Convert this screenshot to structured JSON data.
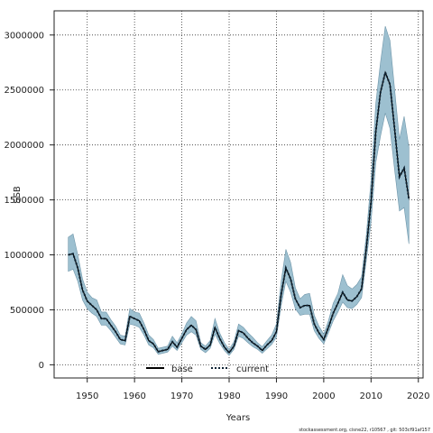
{
  "chart_data": {
    "type": "line",
    "title": "",
    "xlabel": "Years",
    "ylabel": "SSB",
    "xlim": [
      1943,
      2021
    ],
    "ylim": [
      -120000,
      3220000
    ],
    "x_ticks": [
      1950,
      1960,
      1970,
      1980,
      1990,
      2000,
      2010,
      2020
    ],
    "y_ticks": [
      0,
      500000,
      1000000,
      1500000,
      2000000,
      2500000,
      3000000
    ],
    "y_tick_labels": [
      "0",
      "500000",
      "1000000",
      "1500000",
      "2000000",
      "2500000",
      "3000000"
    ],
    "grid": true,
    "legend_position": "bottom",
    "colors": {
      "band": "#9dc0d0",
      "band_edge": "#6f96aa",
      "current": "#0d2233",
      "base": "#000000"
    },
    "x": [
      1946,
      1947,
      1948,
      1949,
      1950,
      1951,
      1952,
      1953,
      1954,
      1955,
      1956,
      1957,
      1958,
      1959,
      1960,
      1961,
      1962,
      1963,
      1964,
      1965,
      1966,
      1967,
      1968,
      1969,
      1970,
      1971,
      1972,
      1973,
      1974,
      1975,
      1976,
      1977,
      1978,
      1979,
      1980,
      1981,
      1982,
      1983,
      1984,
      1985,
      1986,
      1987,
      1988,
      1989,
      1990,
      1991,
      1992,
      1993,
      1994,
      1995,
      1996,
      1997,
      1998,
      1999,
      2000,
      2001,
      2002,
      2003,
      2004,
      2005,
      2006,
      2007,
      2008,
      2009,
      2010,
      2011,
      2012,
      2013,
      2014,
      2015,
      2016,
      2017,
      2018
    ],
    "series": [
      {
        "name": "base",
        "style": "solid",
        "values": [
          1000000,
          1010000,
          880000,
          680000,
          580000,
          540000,
          500000,
          420000,
          420000,
          360000,
          300000,
          230000,
          220000,
          440000,
          420000,
          400000,
          320000,
          220000,
          190000,
          120000,
          130000,
          140000,
          210000,
          160000,
          240000,
          320000,
          360000,
          320000,
          170000,
          140000,
          180000,
          340000,
          240000,
          160000,
          110000,
          170000,
          310000,
          290000,
          240000,
          200000,
          170000,
          130000,
          180000,
          220000,
          300000,
          640000,
          880000,
          780000,
          600000,
          520000,
          540000,
          540000,
          370000,
          290000,
          230000,
          340000,
          470000,
          560000,
          660000,
          590000,
          580000,
          620000,
          690000,
          1060000,
          1480000,
          2120000,
          2480000,
          2660000,
          2550000,
          2140000,
          1710000,
          1790000,
          1510000
        ]
      },
      {
        "name": "current",
        "style": "dotted",
        "values": [
          1000000,
          1010000,
          880000,
          680000,
          580000,
          540000,
          500000,
          420000,
          420000,
          360000,
          300000,
          230000,
          220000,
          440000,
          420000,
          400000,
          320000,
          220000,
          190000,
          120000,
          130000,
          140000,
          210000,
          160000,
          240000,
          320000,
          360000,
          320000,
          170000,
          140000,
          180000,
          340000,
          240000,
          160000,
          110000,
          170000,
          310000,
          290000,
          240000,
          200000,
          170000,
          130000,
          180000,
          220000,
          300000,
          640000,
          880000,
          780000,
          600000,
          520000,
          540000,
          540000,
          370000,
          290000,
          230000,
          340000,
          470000,
          560000,
          660000,
          590000,
          580000,
          620000,
          690000,
          1060000,
          1480000,
          2120000,
          2480000,
          2660000,
          2550000,
          2140000,
          1710000,
          1790000,
          1510000
        ]
      }
    ],
    "band": {
      "lower": [
        850000,
        870000,
        760000,
        590000,
        510000,
        470000,
        440000,
        360000,
        360000,
        310000,
        250000,
        190000,
        180000,
        370000,
        360000,
        340000,
        270000,
        180000,
        155000,
        95000,
        105000,
        115000,
        170000,
        130000,
        200000,
        270000,
        300000,
        270000,
        140000,
        110000,
        150000,
        280000,
        195000,
        130000,
        85000,
        140000,
        260000,
        240000,
        200000,
        165000,
        140000,
        105000,
        145000,
        185000,
        250000,
        540000,
        760000,
        660000,
        510000,
        450000,
        460000,
        460000,
        310000,
        240000,
        190000,
        290000,
        400000,
        480000,
        570000,
        520000,
        510000,
        550000,
        610000,
        950000,
        1300000,
        1840000,
        2080000,
        2290000,
        2150000,
        1770000,
        1400000,
        1430000,
        1100000
      ],
      "upper": [
        1160000,
        1190000,
        1000000,
        780000,
        660000,
        610000,
        590000,
        480000,
        480000,
        410000,
        350000,
        270000,
        260000,
        510000,
        480000,
        470000,
        380000,
        270000,
        230000,
        150000,
        160000,
        170000,
        260000,
        200000,
        280000,
        380000,
        440000,
        400000,
        200000,
        170000,
        220000,
        420000,
        290000,
        200000,
        140000,
        210000,
        370000,
        340000,
        290000,
        250000,
        200000,
        165000,
        220000,
        270000,
        370000,
        760000,
        1050000,
        930000,
        700000,
        600000,
        640000,
        650000,
        450000,
        350000,
        280000,
        400000,
        560000,
        650000,
        820000,
        720000,
        690000,
        730000,
        800000,
        1180000,
        1680000,
        2380000,
        2750000,
        3080000,
        2950000,
        2500000,
        2050000,
        2260000,
        1980000
      ]
    },
    "legend": [
      {
        "label": "base",
        "style": "solid"
      },
      {
        "label": "current",
        "style": "dotted"
      }
    ],
    "footer": "stockassessment.org, cisne22, r10567 , git: 503cf91af157"
  }
}
